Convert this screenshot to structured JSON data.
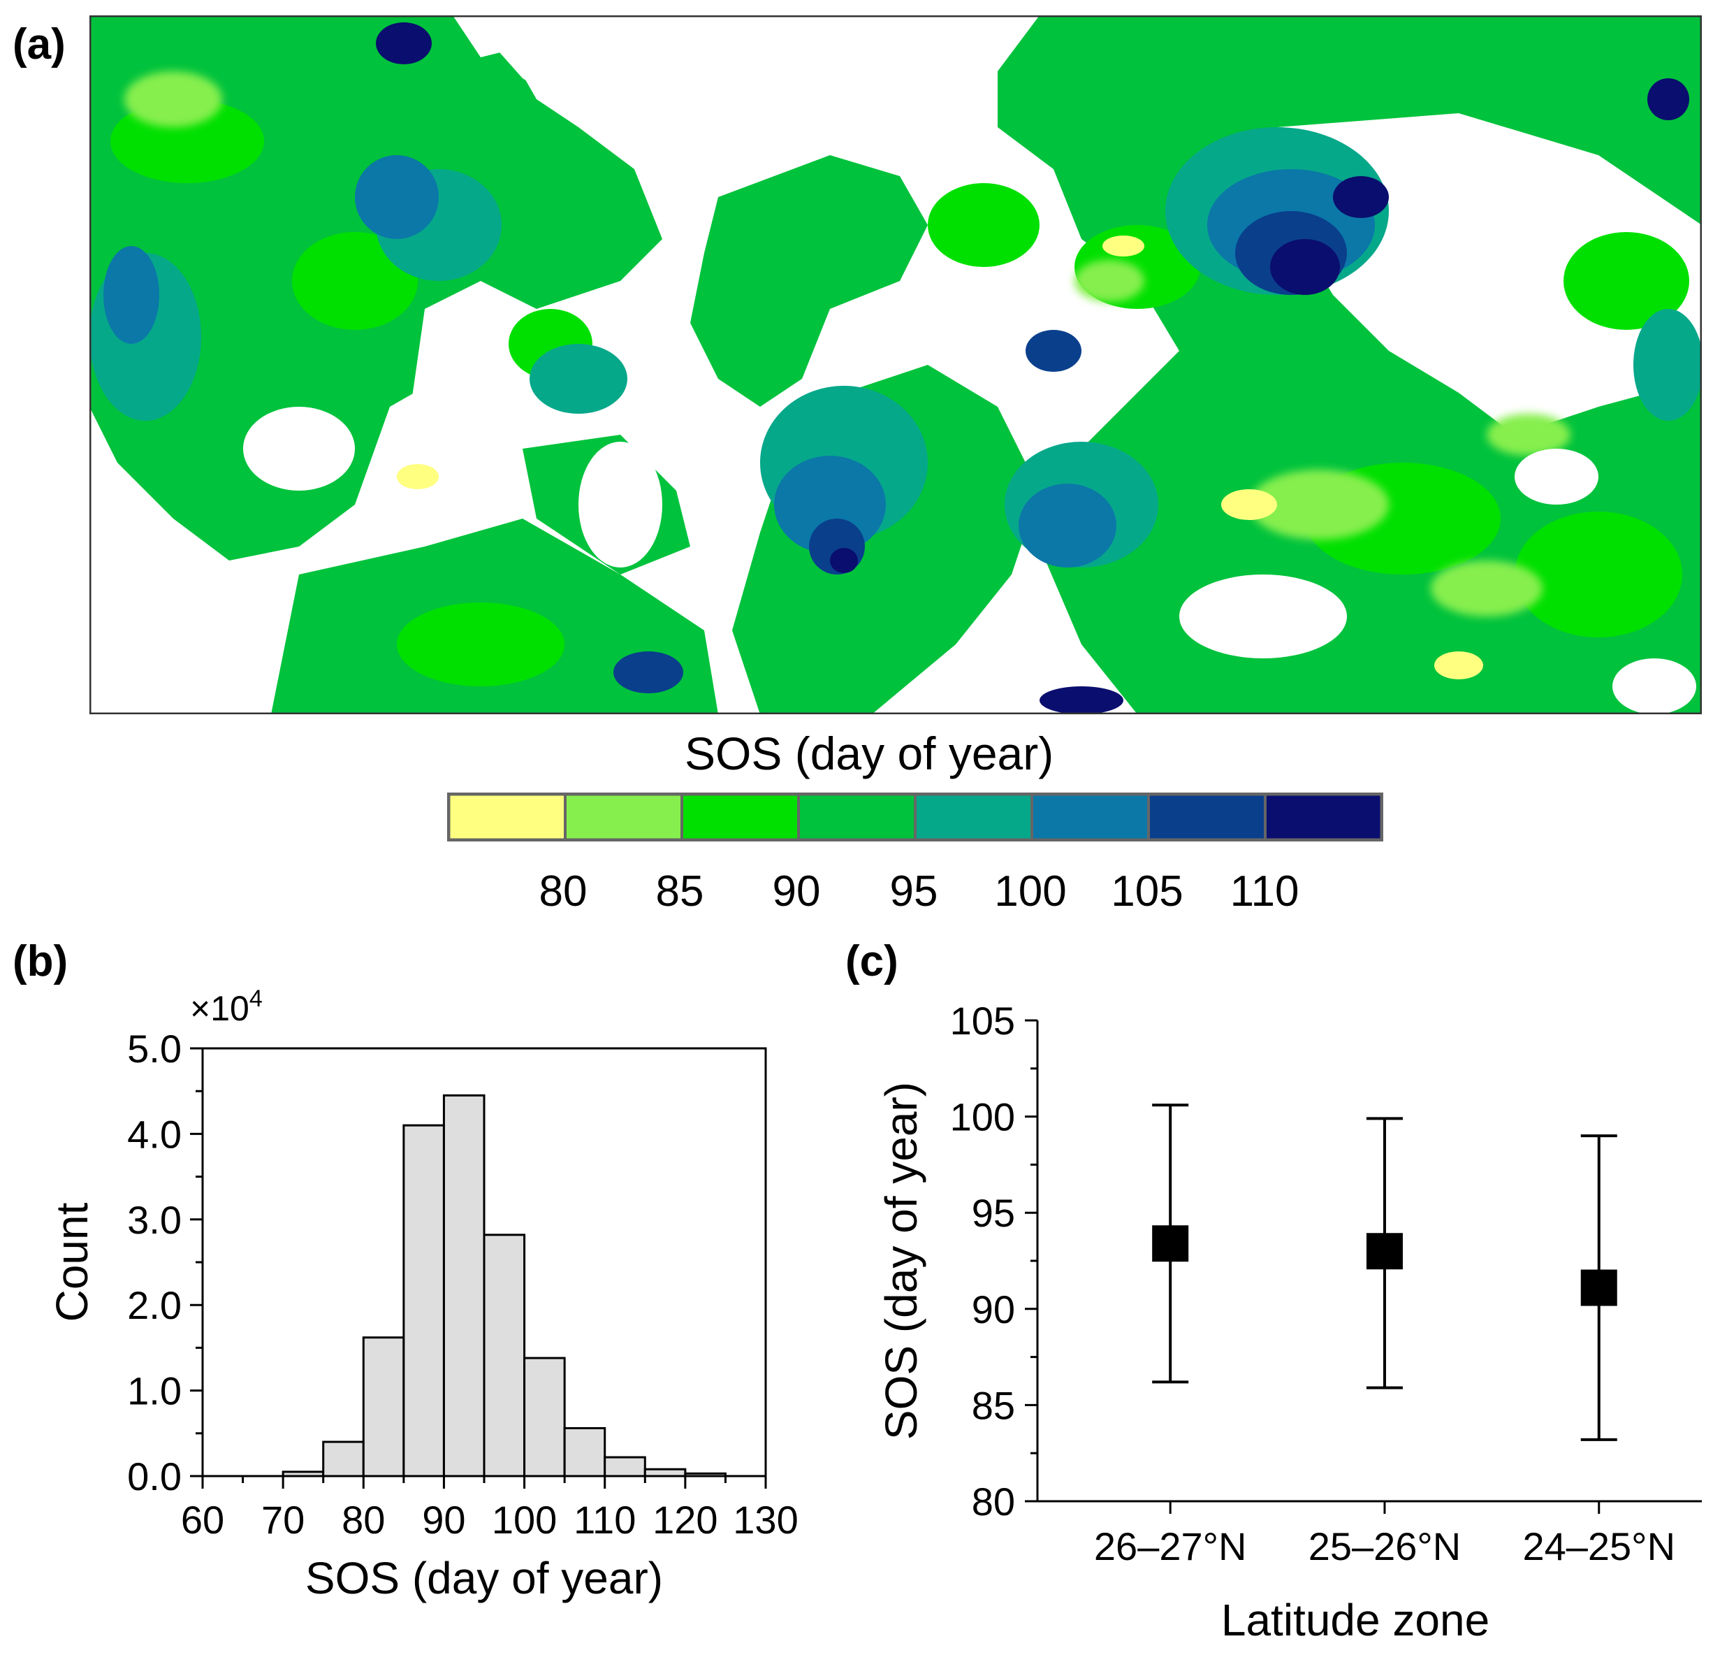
{
  "panels": {
    "a": "(a)",
    "b": "(b)",
    "c": "(c)"
  },
  "colorbar": {
    "title": "SOS (day of year)",
    "colors": [
      "#ffff80",
      "#86ef4e",
      "#00e000",
      "#00c23c",
      "#06a88a",
      "#0b78a8",
      "#0a3f8c",
      "#0a0e6e"
    ],
    "tick_labels": [
      "80",
      "85",
      "90",
      "95",
      "100",
      "105",
      "110"
    ]
  },
  "chart_data": [
    {
      "type": "bar",
      "title": "(b)",
      "xlabel": "SOS (day of year)",
      "ylabel": "Count",
      "multiplier_label": "×10",
      "multiplier_exp": "4",
      "xlim": [
        60,
        130
      ],
      "ylim": [
        0,
        5.0
      ],
      "xticks": [
        60,
        70,
        80,
        90,
        100,
        110,
        120,
        130
      ],
      "xtick_labels": [
        "60",
        "70",
        "80",
        "90",
        "100",
        "110",
        "120",
        "130"
      ],
      "yticks": [
        0,
        1.0,
        2.0,
        3.0,
        4.0,
        5.0
      ],
      "ytick_labels": [
        "0.0",
        "1.0",
        "2.0",
        "3.0",
        "4.0",
        "5.0"
      ],
      "bin_width": 5,
      "bin_starts": [
        60,
        65,
        70,
        75,
        80,
        85,
        90,
        95,
        100,
        105,
        110,
        115,
        120,
        125
      ],
      "values": [
        0,
        0,
        0.05,
        0.4,
        1.62,
        4.1,
        4.45,
        2.82,
        1.38,
        0.56,
        0.22,
        0.08,
        0.03,
        0
      ]
    },
    {
      "type": "scatter",
      "title": "(c)",
      "xlabel": "Latitude zone",
      "ylabel": "SOS (day of year)",
      "categories": [
        "26–27°N",
        "25–26°N",
        "24–25°N"
      ],
      "values": [
        93.4,
        93.0,
        91.1
      ],
      "error_low": [
        86.2,
        85.9,
        83.2
      ],
      "error_high": [
        100.6,
        99.9,
        99.0
      ],
      "ylim": [
        80,
        105
      ],
      "yticks": [
        80,
        85,
        90,
        95,
        100,
        105
      ],
      "ytick_labels": [
        "80",
        "85",
        "90",
        "95",
        "100",
        "105"
      ]
    }
  ]
}
